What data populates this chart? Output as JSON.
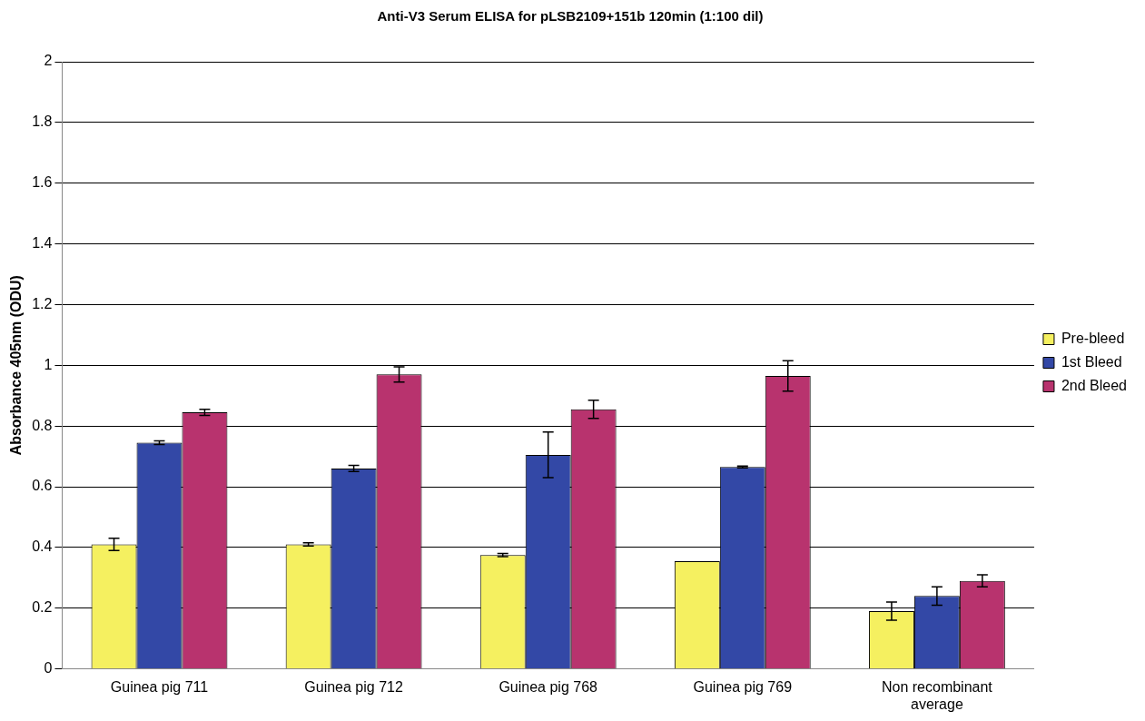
{
  "chart_data": {
    "type": "bar",
    "title": "Anti-V3 Serum ELISA for pLSB2109+151b 120min (1:100 dil)",
    "ylabel": "Absorbance 405nm (ODU)",
    "categories": [
      "Guinea pig 711",
      "Guinea pig 712",
      "Guinea pig 768",
      "Guinea pig 769",
      "Non recombinant average"
    ],
    "series": [
      {
        "name": "Pre-bleed",
        "color": "#f5f060",
        "values": [
          0.41,
          0.41,
          0.375,
          0.355,
          0.19
        ],
        "errors": [
          0.02,
          0.005,
          0.005,
          null,
          0.03
        ]
      },
      {
        "name": "1st Bleed",
        "color": "#3348a6",
        "values": [
          0.745,
          0.66,
          0.705,
          0.665,
          0.24
        ],
        "errors": [
          0.006,
          0.01,
          0.075,
          0.003,
          0.03
        ]
      },
      {
        "name": "2nd Bleed",
        "color": "#b8336e",
        "values": [
          0.845,
          0.97,
          0.855,
          0.965,
          0.29
        ],
        "errors": [
          0.01,
          0.025,
          0.03,
          0.05,
          0.02
        ]
      }
    ],
    "ylim": [
      0,
      2
    ],
    "yticks": [
      0,
      0.2,
      0.4,
      0.6,
      0.8,
      1,
      1.2,
      1.4,
      1.6,
      1.8,
      2
    ],
    "grid": "y",
    "legend": "right"
  }
}
